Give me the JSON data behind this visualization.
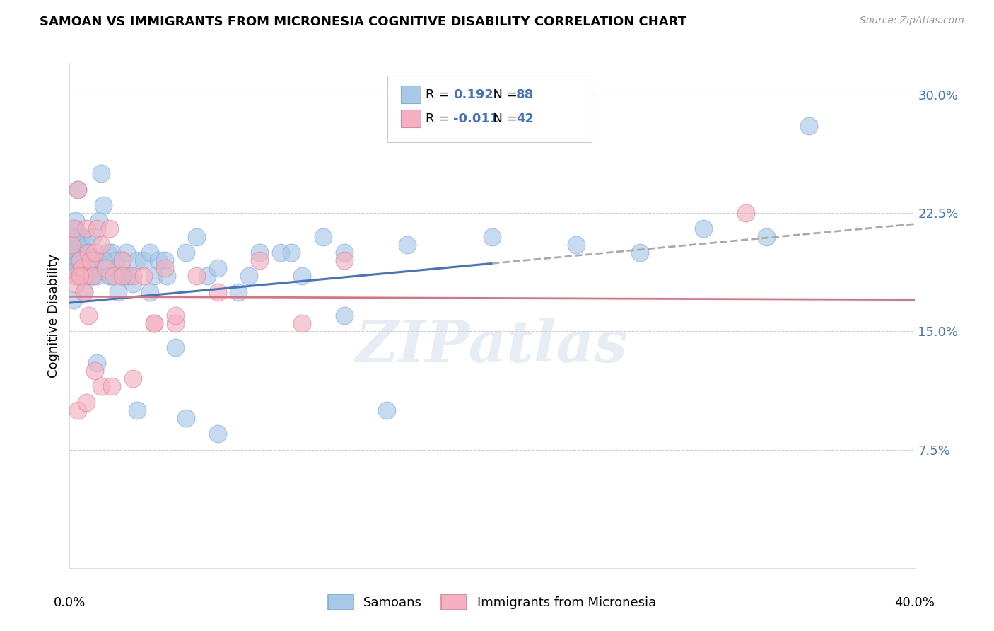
{
  "title": "SAMOAN VS IMMIGRANTS FROM MICRONESIA COGNITIVE DISABILITY CORRELATION CHART",
  "source": "Source: ZipAtlas.com",
  "ylabel": "Cognitive Disability",
  "yticks": [
    0.075,
    0.15,
    0.225,
    0.3
  ],
  "ytick_labels": [
    "7.5%",
    "15.0%",
    "22.5%",
    "30.0%"
  ],
  "xmin": 0.0,
  "xmax": 0.4,
  "ymin": 0.0,
  "ymax": 0.32,
  "legend_samoans_R": "0.192",
  "legend_samoans_N": "88",
  "legend_micronesia_R": "-0.011",
  "legend_micronesia_N": "42",
  "samoan_color": "#a8c8e8",
  "micronesia_color": "#f4b0c0",
  "samoan_line_color": "#4472c4",
  "micronesia_line_color": "#e07080",
  "dashed_line_color": "#aaaaaa",
  "watermark": "ZIPatlas",
  "samoans_x": [
    0.001,
    0.001,
    0.002,
    0.002,
    0.002,
    0.003,
    0.003,
    0.003,
    0.004,
    0.004,
    0.004,
    0.005,
    0.005,
    0.005,
    0.006,
    0.006,
    0.006,
    0.007,
    0.007,
    0.008,
    0.008,
    0.009,
    0.009,
    0.01,
    0.01,
    0.011,
    0.011,
    0.012,
    0.013,
    0.014,
    0.015,
    0.016,
    0.017,
    0.018,
    0.019,
    0.02,
    0.022,
    0.024,
    0.025,
    0.027,
    0.028,
    0.03,
    0.032,
    0.035,
    0.038,
    0.04,
    0.042,
    0.045,
    0.05,
    0.055,
    0.06,
    0.065,
    0.07,
    0.08,
    0.09,
    0.1,
    0.11,
    0.12,
    0.13,
    0.15,
    0.002,
    0.003,
    0.004,
    0.005,
    0.006,
    0.007,
    0.009,
    0.011,
    0.013,
    0.016,
    0.019,
    0.023,
    0.027,
    0.032,
    0.038,
    0.046,
    0.055,
    0.07,
    0.085,
    0.105,
    0.13,
    0.16,
    0.2,
    0.24,
    0.27,
    0.3,
    0.33,
    0.35
  ],
  "samoans_y": [
    0.195,
    0.205,
    0.19,
    0.21,
    0.2,
    0.185,
    0.215,
    0.2,
    0.19,
    0.21,
    0.195,
    0.185,
    0.205,
    0.195,
    0.2,
    0.19,
    0.21,
    0.185,
    0.2,
    0.19,
    0.205,
    0.185,
    0.2,
    0.195,
    0.185,
    0.21,
    0.19,
    0.195,
    0.185,
    0.22,
    0.25,
    0.23,
    0.195,
    0.2,
    0.185,
    0.2,
    0.195,
    0.185,
    0.195,
    0.2,
    0.185,
    0.18,
    0.195,
    0.195,
    0.2,
    0.185,
    0.195,
    0.195,
    0.14,
    0.2,
    0.21,
    0.185,
    0.19,
    0.175,
    0.2,
    0.2,
    0.185,
    0.21,
    0.2,
    0.1,
    0.17,
    0.22,
    0.24,
    0.195,
    0.185,
    0.175,
    0.195,
    0.185,
    0.13,
    0.195,
    0.185,
    0.175,
    0.185,
    0.1,
    0.175,
    0.185,
    0.095,
    0.085,
    0.185,
    0.2,
    0.16,
    0.205,
    0.21,
    0.205,
    0.2,
    0.215,
    0.21,
    0.28
  ],
  "micronesia_x": [
    0.001,
    0.002,
    0.003,
    0.004,
    0.005,
    0.006,
    0.007,
    0.008,
    0.009,
    0.01,
    0.011,
    0.012,
    0.013,
    0.015,
    0.017,
    0.019,
    0.021,
    0.025,
    0.03,
    0.035,
    0.04,
    0.045,
    0.05,
    0.003,
    0.005,
    0.007,
    0.009,
    0.012,
    0.015,
    0.02,
    0.025,
    0.03,
    0.04,
    0.05,
    0.06,
    0.07,
    0.09,
    0.11,
    0.13,
    0.32,
    0.004,
    0.008
  ],
  "micronesia_y": [
    0.205,
    0.215,
    0.185,
    0.24,
    0.195,
    0.19,
    0.185,
    0.215,
    0.2,
    0.195,
    0.185,
    0.2,
    0.215,
    0.205,
    0.19,
    0.215,
    0.185,
    0.195,
    0.185,
    0.185,
    0.155,
    0.19,
    0.155,
    0.18,
    0.185,
    0.175,
    0.16,
    0.125,
    0.115,
    0.115,
    0.185,
    0.12,
    0.155,
    0.16,
    0.185,
    0.175,
    0.195,
    0.155,
    0.195,
    0.225,
    0.1,
    0.105
  ],
  "blue_line_start_y": 0.168,
  "blue_line_end_y": 0.218,
  "blue_line_solid_end_x": 0.2,
  "pink_line_start_y": 0.172,
  "pink_line_end_y": 0.17
}
